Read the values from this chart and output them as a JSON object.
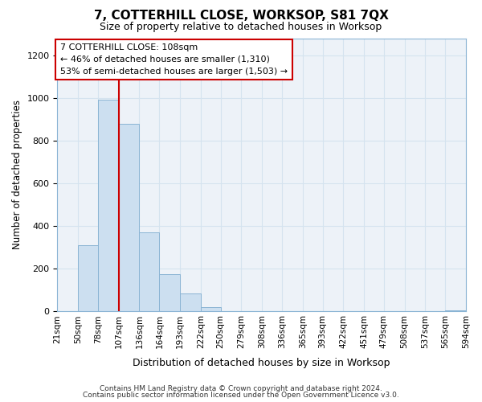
{
  "title": "7, COTTERHILL CLOSE, WORKSOP, S81 7QX",
  "subtitle": "Size of property relative to detached houses in Worksop",
  "xlabel": "Distribution of detached houses by size in Worksop",
  "ylabel": "Number of detached properties",
  "bin_labels": [
    "21sqm",
    "50sqm",
    "78sqm",
    "107sqm",
    "136sqm",
    "164sqm",
    "193sqm",
    "222sqm",
    "250sqm",
    "279sqm",
    "308sqm",
    "336sqm",
    "365sqm",
    "393sqm",
    "422sqm",
    "451sqm",
    "479sqm",
    "508sqm",
    "537sqm",
    "565sqm",
    "594sqm"
  ],
  "bin_edges": [
    21,
    50,
    78,
    107,
    136,
    164,
    193,
    222,
    250,
    279,
    308,
    336,
    365,
    393,
    422,
    451,
    479,
    508,
    537,
    565,
    594
  ],
  "bar_heights": [
    0,
    310,
    990,
    880,
    370,
    175,
    85,
    20,
    0,
    0,
    0,
    0,
    0,
    0,
    0,
    0,
    0,
    0,
    0,
    5,
    0
  ],
  "bar_color": "#ccdff0",
  "bar_edge_color": "#8ab4d4",
  "ylim": [
    0,
    1280
  ],
  "yticks": [
    0,
    200,
    400,
    600,
    800,
    1000,
    1200
  ],
  "vline_x": 107,
  "vline_color": "#cc0000",
  "annotation_line1": "7 COTTERHILL CLOSE: 108sqm",
  "annotation_line2": "← 46% of detached houses are smaller (1,310)",
  "annotation_line3": "53% of semi-detached houses are larger (1,503) →",
  "annotation_box_color": "#ffffff",
  "annotation_box_edge": "#cc0000",
  "footer1": "Contains HM Land Registry data © Crown copyright and database right 2024.",
  "footer2": "Contains public sector information licensed under the Open Government Licence v3.0.",
  "grid_color": "#d5e3ef",
  "background_color": "#ffffff",
  "plot_bg_color": "#edf2f8"
}
